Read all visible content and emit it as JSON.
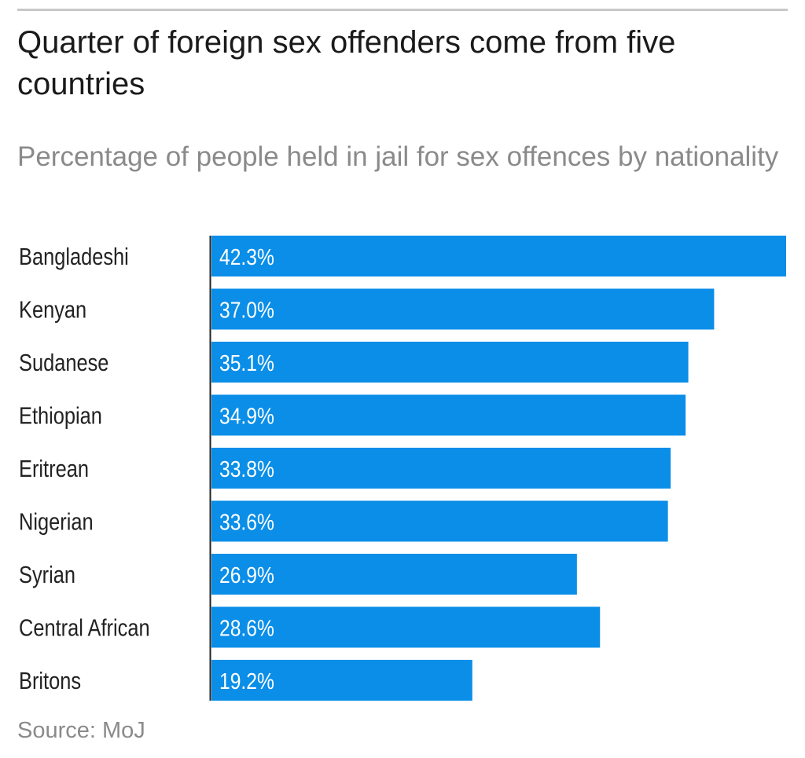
{
  "chart_data": {
    "type": "bar",
    "orientation": "horizontal",
    "title": "Quarter of foreign sex offenders come from five countries",
    "subtitle": "Percentage of people held in jail for sex offences by nationality",
    "source": "Source: MoJ",
    "categories": [
      "Bangladeshi",
      "Kenyan",
      "Sudanese",
      "Ethiopian",
      "Eritrean",
      "Nigerian",
      "Syrian",
      "Central African",
      "Britons"
    ],
    "values": [
      42.3,
      37.0,
      35.1,
      34.9,
      33.8,
      33.6,
      26.9,
      28.6,
      19.2
    ],
    "value_labels": [
      "42.3%",
      "37.0%",
      "35.1%",
      "34.9%",
      "33.8%",
      "33.6%",
      "26.9%",
      "28.6%",
      "19.2%"
    ],
    "xlim": [
      0,
      42.3
    ],
    "xlabel": "",
    "ylabel": "",
    "grid": false,
    "bar_color": "#0a8ee8"
  }
}
